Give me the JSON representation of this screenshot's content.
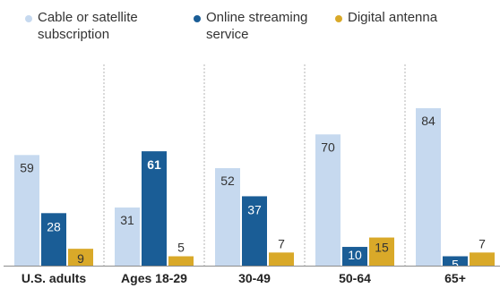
{
  "chart_data": {
    "type": "bar",
    "categories": [
      "U.S. adults",
      "Ages 18-29",
      "30-49",
      "50-64",
      "65+"
    ],
    "series": [
      {
        "name": "Cable or satellite subscription",
        "values": [
          59,
          31,
          52,
          70,
          84
        ],
        "color": "#c6d9ef"
      },
      {
        "name": "Online streaming service",
        "values": [
          28,
          61,
          37,
          10,
          5
        ],
        "color": "#1a5d96"
      },
      {
        "name": "Digital antenna",
        "values": [
          9,
          5,
          7,
          15,
          7
        ],
        "color": "#d9a929"
      }
    ],
    "ylim": [
      0,
      100
    ],
    "grid": false,
    "legend_position": "top"
  }
}
